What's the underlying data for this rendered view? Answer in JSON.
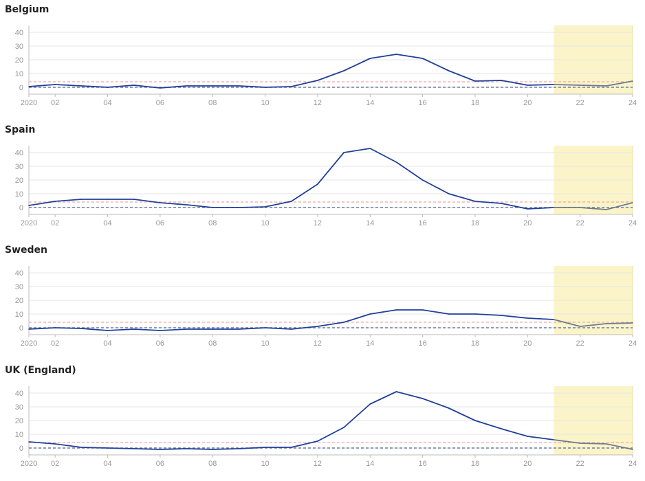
{
  "colors": {
    "line": "#1f3f99",
    "projection_line": "#6b7a90",
    "projection_bg": "#fbf4c8",
    "baseline": "#6d7c9a",
    "threshold": "#f4a3a3",
    "grid": "#e6e6e6",
    "axis": "#bbbbbb",
    "tick_text": "#999999",
    "title_text": "#222222"
  },
  "chart_data": [
    {
      "type": "line",
      "title": "Belgium",
      "x": [
        1,
        2,
        3,
        4,
        5,
        6,
        7,
        8,
        9,
        10,
        11,
        12,
        13,
        14,
        15,
        16,
        17,
        18,
        19,
        20,
        21,
        22,
        23,
        24
      ],
      "values": [
        0.5,
        2,
        1,
        0,
        1.5,
        -0.5,
        1,
        1,
        1,
        0,
        0.5,
        5,
        12,
        21,
        24,
        21,
        12,
        4.5,
        5,
        1.5,
        2,
        1.5,
        1,
        4.5
      ],
      "projection_from_x": 21,
      "threshold": 4,
      "baseline": 0,
      "xlim": [
        1,
        24
      ],
      "ylim": [
        -5,
        45
      ],
      "yticks": [
        "40",
        "30",
        "20",
        "10",
        "0"
      ],
      "xticks": [
        "2020",
        "02",
        "04",
        "06",
        "08",
        "10",
        "12",
        "14",
        "16",
        "18",
        "20",
        "22",
        "24"
      ]
    },
    {
      "type": "line",
      "title": "Spain",
      "x": [
        1,
        2,
        3,
        4,
        5,
        6,
        7,
        8,
        9,
        10,
        11,
        12,
        13,
        14,
        15,
        16,
        17,
        18,
        19,
        20,
        21,
        22,
        23,
        24
      ],
      "values": [
        1.5,
        4.5,
        6,
        6,
        6,
        3.5,
        2,
        0,
        0,
        0.5,
        4.5,
        17,
        40,
        43,
        33,
        20,
        10,
        4.5,
        3,
        -1,
        0,
        0,
        -1.5,
        3.5
      ],
      "projection_from_x": 21,
      "threshold": 4,
      "baseline": 0,
      "xlim": [
        1,
        24
      ],
      "ylim": [
        -5,
        45
      ],
      "yticks": [
        "40",
        "30",
        "20",
        "10",
        "0"
      ],
      "xticks": [
        "2020",
        "02",
        "04",
        "06",
        "08",
        "10",
        "12",
        "14",
        "16",
        "18",
        "20",
        "22",
        "24"
      ]
    },
    {
      "type": "line",
      "title": "Sweden",
      "x": [
        1,
        2,
        3,
        4,
        5,
        6,
        7,
        8,
        9,
        10,
        11,
        12,
        13,
        14,
        15,
        16,
        17,
        18,
        19,
        20,
        21,
        22,
        23,
        24
      ],
      "values": [
        -1,
        0,
        -0.5,
        -2,
        -1,
        -2,
        -1,
        -1,
        -1,
        0,
        -1,
        1,
        4,
        10,
        13,
        13,
        10,
        10,
        9,
        7,
        6,
        1,
        3,
        3.5
      ],
      "projection_from_x": 21,
      "threshold": 4,
      "baseline": 0,
      "xlim": [
        1,
        24
      ],
      "ylim": [
        -5,
        45
      ],
      "yticks": [
        "40",
        "30",
        "20",
        "10",
        "0"
      ],
      "xticks": [
        "2020",
        "02",
        "04",
        "06",
        "08",
        "10",
        "12",
        "14",
        "16",
        "18",
        "20",
        "22",
        "24"
      ]
    },
    {
      "type": "line",
      "title": "UK (England)",
      "x": [
        1,
        2,
        3,
        4,
        5,
        6,
        7,
        8,
        9,
        10,
        11,
        12,
        13,
        14,
        15,
        16,
        17,
        18,
        19,
        20,
        21,
        22,
        23,
        24
      ],
      "values": [
        4.5,
        3,
        0.5,
        0,
        -0.5,
        -1,
        -0.5,
        -1,
        -0.5,
        0.5,
        0.5,
        5,
        15,
        32,
        41,
        36,
        29,
        20,
        14,
        8.5,
        6,
        3.5,
        3,
        -1
      ],
      "projection_from_x": 21,
      "threshold": 4,
      "baseline": 0,
      "xlim": [
        1,
        24
      ],
      "ylim": [
        -5,
        45
      ],
      "yticks": [
        "40",
        "30",
        "20",
        "10",
        "0"
      ],
      "xticks": [
        "2020",
        "02",
        "04",
        "06",
        "08",
        "10",
        "12",
        "14",
        "16",
        "18",
        "20",
        "22",
        "24"
      ]
    }
  ]
}
